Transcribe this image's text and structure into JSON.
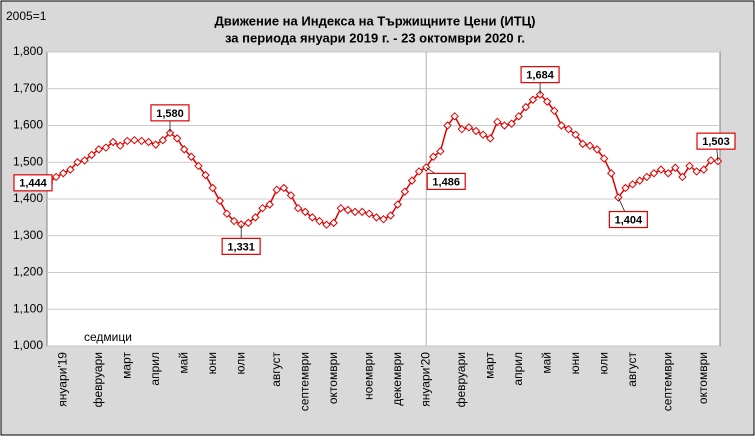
{
  "chart_data": {
    "type": "line",
    "title": "Движение на Индекса на Тържищните Цени (ИТЦ)",
    "subtitle": "за периода януари 2019 г. - 23 октомври 2020 г.",
    "base_note": "2005=1",
    "x_label": "седмици",
    "color": "#e00000",
    "grid": true,
    "categories": [
      null,
      null,
      "януари'19",
      null,
      null,
      null,
      null,
      "февруари",
      null,
      null,
      null,
      "март",
      null,
      null,
      null,
      "април",
      null,
      null,
      null,
      "май",
      null,
      null,
      null,
      "юни",
      null,
      null,
      null,
      "юли",
      null,
      null,
      null,
      null,
      "август",
      null,
      null,
      null,
      "септември",
      null,
      null,
      null,
      "октомври",
      null,
      null,
      null,
      null,
      "ноември",
      null,
      null,
      null,
      "декември",
      null,
      null,
      null,
      "януари'20",
      null,
      null,
      null,
      null,
      "февруари",
      null,
      null,
      null,
      "март",
      null,
      null,
      null,
      "април",
      null,
      null,
      null,
      "май",
      null,
      null,
      null,
      "юни",
      null,
      null,
      null,
      "юли",
      null,
      null,
      null,
      "август",
      null,
      null,
      null,
      null,
      "септември",
      null,
      null,
      null,
      null,
      "октомври",
      null,
      null
    ],
    "values": [
      1444,
      1460,
      1470,
      1480,
      1500,
      1505,
      1520,
      1535,
      1540,
      1555,
      1545,
      1558,
      1560,
      1558,
      1555,
      1548,
      1560,
      1580,
      1565,
      1535,
      1515,
      1490,
      1465,
      1430,
      1395,
      1360,
      1340,
      1331,
      1335,
      1350,
      1375,
      1385,
      1425,
      1430,
      1410,
      1375,
      1365,
      1350,
      1340,
      1330,
      1335,
      1375,
      1370,
      1365,
      1365,
      1360,
      1350,
      1345,
      1355,
      1385,
      1420,
      1450,
      1475,
      1486,
      1515,
      1530,
      1600,
      1625,
      1590,
      1595,
      1585,
      1575,
      1565,
      1610,
      1600,
      1605,
      1625,
      1650,
      1670,
      1684,
      1665,
      1640,
      1600,
      1590,
      1575,
      1550,
      1545,
      1535,
      1510,
      1470,
      1404,
      1430,
      1440,
      1450,
      1460,
      1470,
      1480,
      1470,
      1485,
      1460,
      1490,
      1475,
      1480,
      1505,
      1503
    ],
    "value_labels": [
      "1,444",
      null,
      null,
      null,
      null,
      null,
      null,
      null,
      null,
      null,
      null,
      null,
      null,
      null,
      null,
      null,
      null,
      "1,580",
      null,
      null,
      null,
      null,
      null,
      null,
      null,
      null,
      null,
      "1,331",
      null,
      null,
      null,
      null,
      null,
      null,
      null,
      null,
      null,
      null,
      null,
      null,
      null,
      null,
      null,
      null,
      null,
      null,
      null,
      null,
      null,
      null,
      null,
      null,
      null,
      "1,486",
      null,
      null,
      null,
      null,
      null,
      null,
      null,
      null,
      null,
      null,
      null,
      null,
      null,
      null,
      null,
      "1,684",
      null,
      null,
      null,
      null,
      null,
      null,
      null,
      null,
      null,
      null,
      "1,404",
      null,
      null,
      null,
      null,
      null,
      null,
      null,
      null,
      null,
      null,
      null,
      null,
      null,
      "1,503"
    ],
    "ylim": [
      1000,
      1800
    ],
    "yticks": [
      {
        "value": 1000,
        "label": "1,000"
      },
      {
        "value": 1100,
        "label": "1,100"
      },
      {
        "value": 1200,
        "label": "1,200"
      },
      {
        "value": 1300,
        "label": "1,300"
      },
      {
        "value": 1400,
        "label": "1,400"
      },
      {
        "value": 1500,
        "label": "1,500"
      },
      {
        "value": 1600,
        "label": "1,600"
      },
      {
        "value": 1700,
        "label": "1,700"
      },
      {
        "value": 1800,
        "label": "1,800"
      }
    ]
  }
}
